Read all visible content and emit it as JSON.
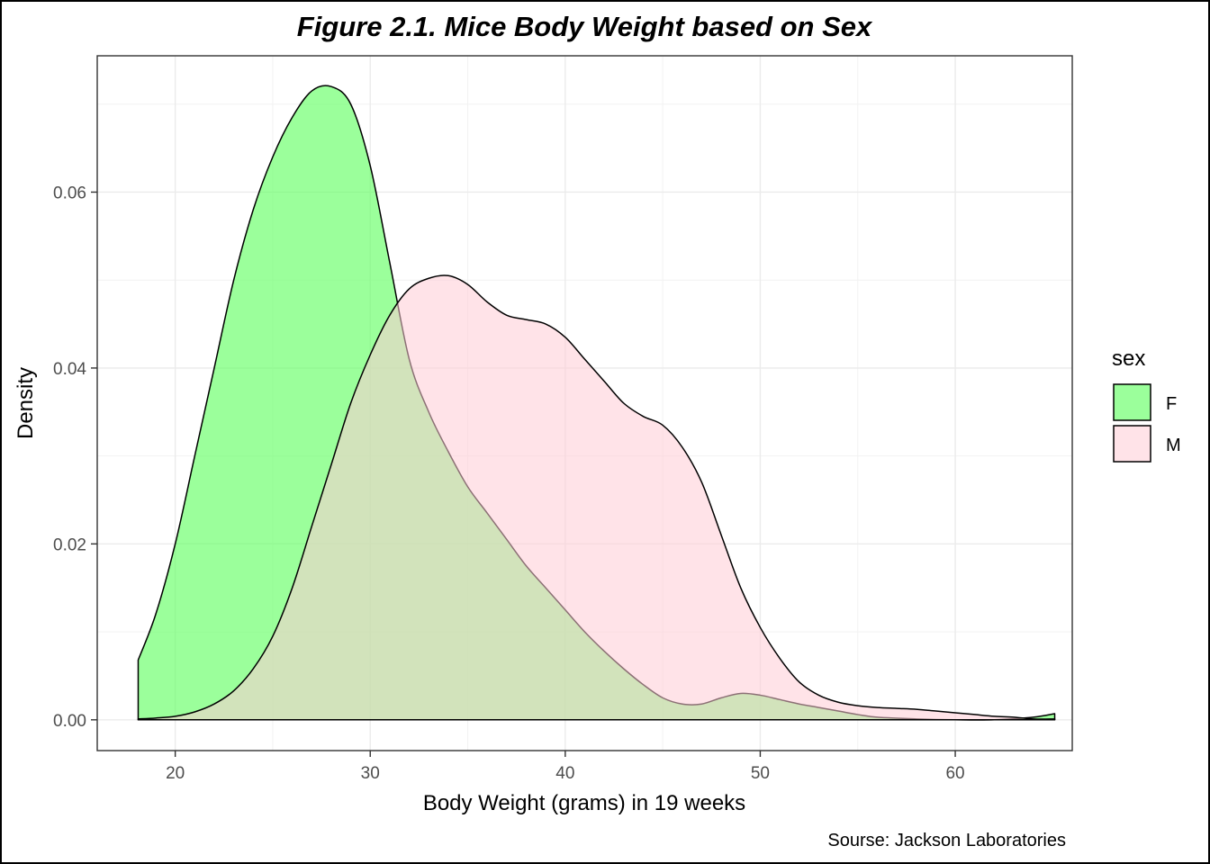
{
  "chart_data": {
    "type": "area",
    "title": "Figure 2.1. Mice Body Weight based on Sex",
    "xlabel": "Body Weight (grams) in 19 weeks",
    "ylabel": "Density",
    "caption": "Sourse: Jackson Laboratories",
    "xlim": [
      16,
      66
    ],
    "ylim": [
      -0.0035,
      0.0755
    ],
    "xticks": [
      20,
      30,
      40,
      50,
      60
    ],
    "xtick_labels": [
      "20",
      "30",
      "40",
      "50",
      "60"
    ],
    "yticks": [
      0.0,
      0.02,
      0.04,
      0.06
    ],
    "ytick_labels": [
      "0.00",
      "0.02",
      "0.04",
      "0.06"
    ],
    "grid": true,
    "legend": {
      "title": "sex",
      "position": "right"
    },
    "series": [
      {
        "name": "F",
        "color": "#66ff66",
        "opacity": 0.65,
        "x": [
          18.1,
          19,
          20,
          21,
          22,
          23,
          24,
          25,
          26,
          27,
          28,
          29,
          30,
          31,
          32,
          33,
          34,
          35,
          36,
          37,
          38,
          39,
          40,
          41,
          42,
          43,
          44,
          45,
          46,
          47,
          48,
          49,
          50,
          51,
          52,
          53,
          54,
          55,
          56,
          58,
          60,
          62,
          64,
          65.1
        ],
        "y": [
          0.0068,
          0.012,
          0.02,
          0.03,
          0.04,
          0.05,
          0.058,
          0.064,
          0.0685,
          0.0715,
          0.072,
          0.07,
          0.063,
          0.052,
          0.041,
          0.035,
          0.0305,
          0.0265,
          0.0235,
          0.0205,
          0.0175,
          0.015,
          0.0125,
          0.01,
          0.0078,
          0.0058,
          0.004,
          0.0025,
          0.0018,
          0.0018,
          0.0025,
          0.003,
          0.0028,
          0.0023,
          0.0018,
          0.0014,
          0.001,
          0.0006,
          0.0003,
          0.0001,
          0.0,
          0.0,
          0.0003,
          0.0007
        ]
      },
      {
        "name": "M",
        "color": "#ffccd5",
        "opacity": 0.55,
        "x": [
          18.1,
          19,
          20,
          21,
          22,
          23,
          24,
          25,
          26,
          27,
          28,
          29,
          30,
          31,
          32,
          33,
          34,
          35,
          36,
          37,
          38,
          39,
          40,
          41,
          42,
          43,
          44,
          45,
          46,
          47,
          48,
          49,
          50,
          51,
          52,
          53,
          54,
          55,
          56,
          57,
          58,
          59,
          60,
          61,
          62,
          63,
          64,
          65.1
        ],
        "y": [
          0.0001,
          0.0002,
          0.0004,
          0.0009,
          0.0018,
          0.0033,
          0.0058,
          0.0095,
          0.015,
          0.022,
          0.029,
          0.036,
          0.0415,
          0.046,
          0.049,
          0.0502,
          0.0505,
          0.0495,
          0.0475,
          0.046,
          0.0455,
          0.045,
          0.0435,
          0.041,
          0.0385,
          0.036,
          0.0345,
          0.0335,
          0.031,
          0.027,
          0.021,
          0.015,
          0.0105,
          0.007,
          0.0043,
          0.0028,
          0.002,
          0.0016,
          0.0014,
          0.0013,
          0.0012,
          0.001,
          0.0008,
          0.0006,
          0.0004,
          0.0003,
          0.0001,
          0.0001
        ]
      }
    ]
  }
}
